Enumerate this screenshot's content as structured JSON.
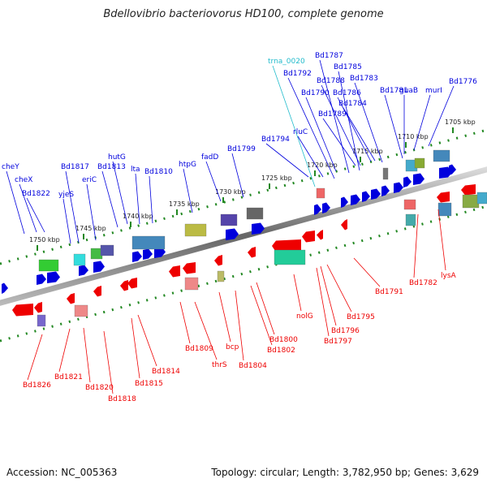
{
  "title": "Bdellovibrio bacteriovorus HD100, complete genome",
  "footer": {
    "accession": "Accession: NC_005363",
    "summary": "Topology: circular; Length: 3,782,950 bp; Genes: 3,629"
  },
  "colors": {
    "forward": "#0000dd",
    "reverse": "#ee0000",
    "trna": "#22bbcc",
    "backbone": "#888888",
    "ticks": "#228822"
  },
  "ticks": [
    {
      "label": "1705 kbp"
    },
    {
      "label": "1710 kbp"
    },
    {
      "label": "1715 kbp"
    },
    {
      "label": "1720 kbp"
    },
    {
      "label": "1725 kbp"
    },
    {
      "label": "1730 kbp"
    },
    {
      "label": "1735 kbp"
    },
    {
      "label": "1740 kbp"
    },
    {
      "label": "1745 kbp"
    },
    {
      "label": "1750 kbp"
    }
  ],
  "top_labels": [
    {
      "text": "trna_0020",
      "kind": "trna"
    },
    {
      "text": "Bd1787",
      "kind": "forward"
    },
    {
      "text": "Bd1785",
      "kind": "forward"
    },
    {
      "text": "Bd1792",
      "kind": "forward"
    },
    {
      "text": "Bd1788",
      "kind": "forward"
    },
    {
      "text": "Bd1783",
      "kind": "forward"
    },
    {
      "text": "Bd1776",
      "kind": "forward"
    },
    {
      "text": "Bd1790",
      "kind": "forward"
    },
    {
      "text": "Bd1786",
      "kind": "forward"
    },
    {
      "text": "Bd1781",
      "kind": "forward"
    },
    {
      "text": "guaB",
      "kind": "forward"
    },
    {
      "text": "murI",
      "kind": "forward"
    },
    {
      "text": "Bd1784",
      "kind": "forward"
    },
    {
      "text": "Bd1789",
      "kind": "forward"
    },
    {
      "text": "rluC",
      "kind": "forward"
    },
    {
      "text": "Bd1794",
      "kind": "forward"
    },
    {
      "text": "Bd1799",
      "kind": "forward"
    },
    {
      "text": "fadD",
      "kind": "forward"
    },
    {
      "text": "htpG",
      "kind": "forward"
    },
    {
      "text": "hutG",
      "kind": "forward"
    },
    {
      "text": "Bd1813",
      "kind": "forward"
    },
    {
      "text": "Bd1810",
      "kind": "forward"
    },
    {
      "text": "lta",
      "kind": "forward"
    },
    {
      "text": "Bd1817",
      "kind": "forward"
    },
    {
      "text": "eriC",
      "kind": "forward"
    },
    {
      "text": "yjeS",
      "kind": "forward"
    },
    {
      "text": "cheY",
      "kind": "forward"
    },
    {
      "text": "cheX",
      "kind": "forward"
    },
    {
      "text": "Bd1822",
      "kind": "forward"
    }
  ],
  "bottom_labels": [
    {
      "text": "lysA",
      "kind": "reverse"
    },
    {
      "text": "Bd1782",
      "kind": "reverse"
    },
    {
      "text": "Bd1791",
      "kind": "reverse"
    },
    {
      "text": "Bd1795",
      "kind": "reverse"
    },
    {
      "text": "nolG",
      "kind": "reverse"
    },
    {
      "text": "Bd1796",
      "kind": "reverse"
    },
    {
      "text": "Bd1797",
      "kind": "reverse"
    },
    {
      "text": "Bd1800",
      "kind": "reverse"
    },
    {
      "text": "Bd1802",
      "kind": "reverse"
    },
    {
      "text": "Bd1804",
      "kind": "reverse"
    },
    {
      "text": "bcp",
      "kind": "reverse"
    },
    {
      "text": "thrS",
      "kind": "reverse"
    },
    {
      "text": "Bd1809",
      "kind": "reverse"
    },
    {
      "text": "Bd1814",
      "kind": "reverse"
    },
    {
      "text": "Bd1815",
      "kind": "reverse"
    },
    {
      "text": "Bd1818",
      "kind": "reverse"
    },
    {
      "text": "Bd1820",
      "kind": "reverse"
    },
    {
      "text": "Bd1821",
      "kind": "reverse"
    },
    {
      "text": "Bd1826",
      "kind": "reverse"
    }
  ]
}
